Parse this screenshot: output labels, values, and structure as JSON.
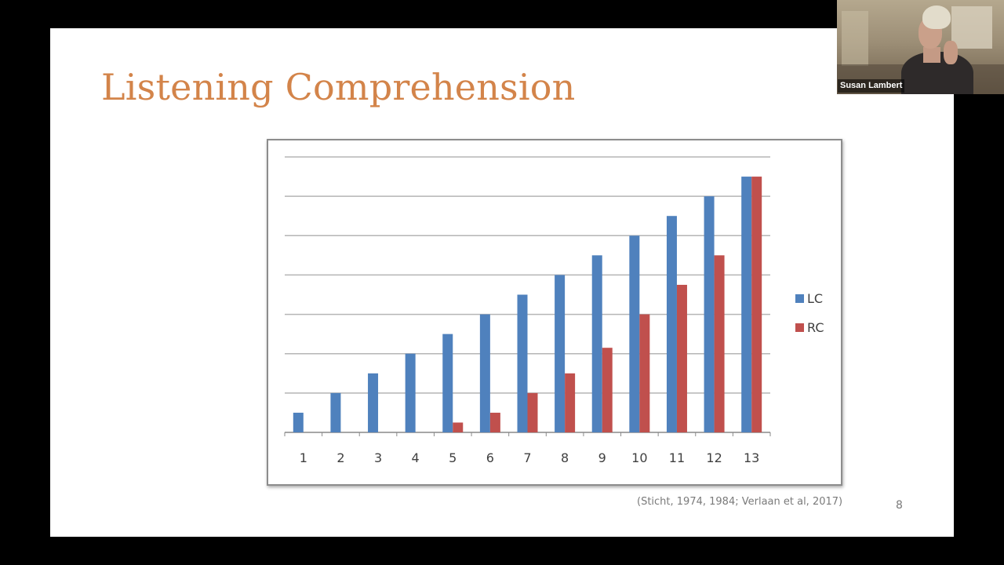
{
  "slide": {
    "title": "Listening Comprehension",
    "title_color": "#d3844a",
    "citation": "(Sticht, 1974, 1984; Verlaan et al, 2017)",
    "page_number": "8"
  },
  "video": {
    "participant_name": "Susan Lambert"
  },
  "chart_data": {
    "type": "bar",
    "categories": [
      "1",
      "2",
      "3",
      "4",
      "5",
      "6",
      "7",
      "8",
      "9",
      "10",
      "11",
      "12",
      "13"
    ],
    "ylim": [
      0,
      14
    ],
    "grid": true,
    "legend_position": "right",
    "series": [
      {
        "name": "LC",
        "color": "#4f81bd",
        "values": [
          1,
          2,
          3,
          4,
          5,
          6,
          7,
          8,
          9,
          10,
          11,
          12,
          13
        ]
      },
      {
        "name": "RC",
        "color": "#c0504d",
        "values": [
          0,
          0,
          0,
          0,
          0.5,
          1,
          2,
          3,
          4.3,
          6,
          7.5,
          9,
          13
        ]
      }
    ]
  }
}
